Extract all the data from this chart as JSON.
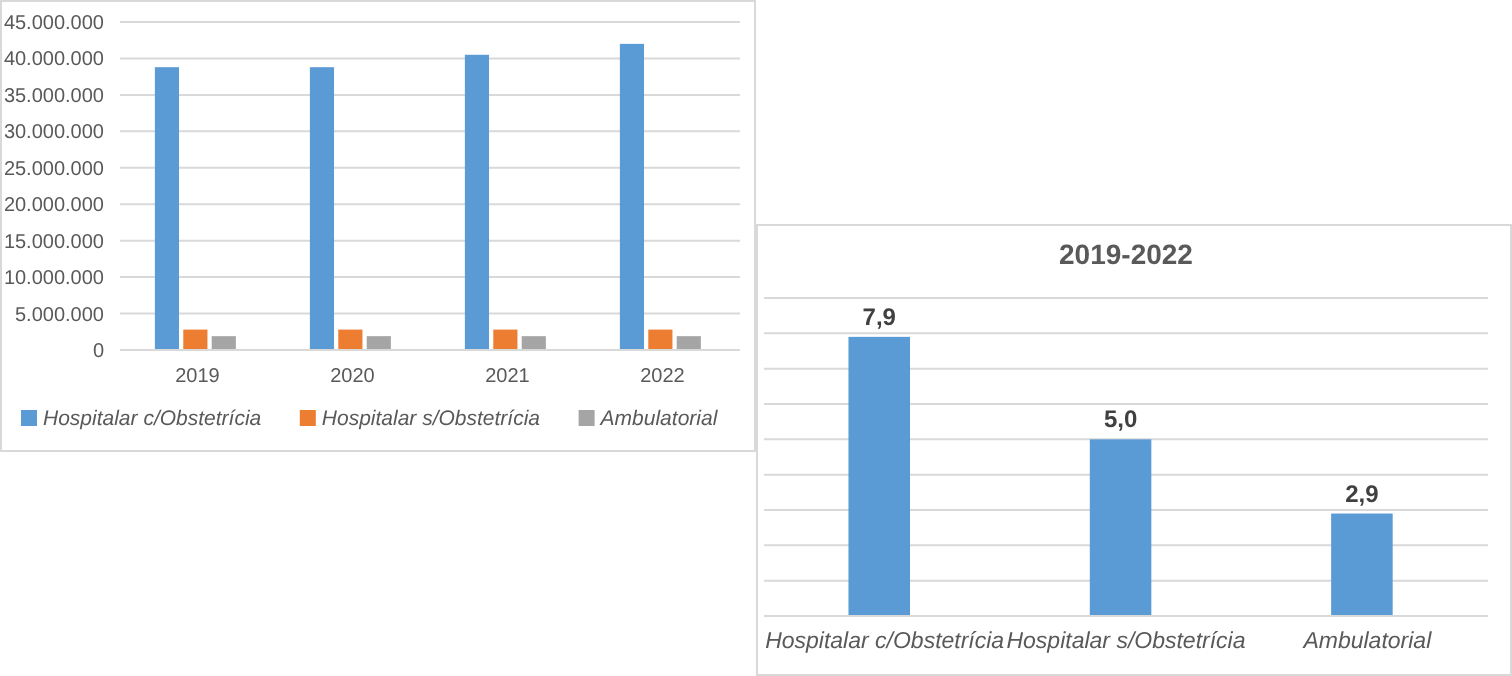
{
  "chart_data": [
    {
      "type": "bar",
      "categories": [
        "2019",
        "2020",
        "2021",
        "2022"
      ],
      "series": [
        {
          "name": "Hospitalar c/Obstetrícia",
          "color": "#5b9bd5",
          "values": [
            38800000,
            38800000,
            40500000,
            42000000
          ]
        },
        {
          "name": "Hospitalar s/Obstetrícia",
          "color": "#ed7d31",
          "values": [
            2800000,
            2800000,
            2800000,
            2800000
          ]
        },
        {
          "name": "Ambulatorial",
          "color": "#a5a5a5",
          "values": [
            1900000,
            1900000,
            1900000,
            1900000
          ]
        }
      ],
      "ylim": [
        0,
        45000000
      ],
      "yticks": [
        {
          "value": 0,
          "label": "0"
        },
        {
          "value": 5000000,
          "label": "5.000.000"
        },
        {
          "value": 10000000,
          "label": "10.000.000"
        },
        {
          "value": 15000000,
          "label": "15.000.000"
        },
        {
          "value": 20000000,
          "label": "20.000.000"
        },
        {
          "value": 25000000,
          "label": "25.000.000"
        },
        {
          "value": 30000000,
          "label": "30.000.000"
        },
        {
          "value": 35000000,
          "label": "35.000.000"
        },
        {
          "value": 40000000,
          "label": "40.000.000"
        },
        {
          "value": 45000000,
          "label": "45.000.000"
        }
      ],
      "grid": "y",
      "legend": "bottom"
    },
    {
      "type": "bar",
      "title": "2019-2022",
      "categories": [
        "Hospitalar c/Obstetrícia",
        "Hospitalar s/Obstetrícia",
        "Ambulatorial"
      ],
      "values": [
        7.9,
        5.0,
        2.9
      ],
      "color": "#5b9bd5",
      "value_labels": [
        "7,9",
        "5,0",
        "2,9"
      ],
      "ylim": [
        0,
        9
      ],
      "yticks": [
        {
          "value": 0,
          "label": null
        },
        {
          "value": 1,
          "label": null
        },
        {
          "value": 2,
          "label": null
        },
        {
          "value": 3,
          "label": null
        },
        {
          "value": 4,
          "label": null
        },
        {
          "value": 5,
          "label": null
        },
        {
          "value": 6,
          "label": null
        },
        {
          "value": 7,
          "label": null
        },
        {
          "value": 8,
          "label": null
        },
        {
          "value": 9,
          "label": null
        }
      ],
      "grid": "y",
      "tick_labels": "x"
    }
  ]
}
